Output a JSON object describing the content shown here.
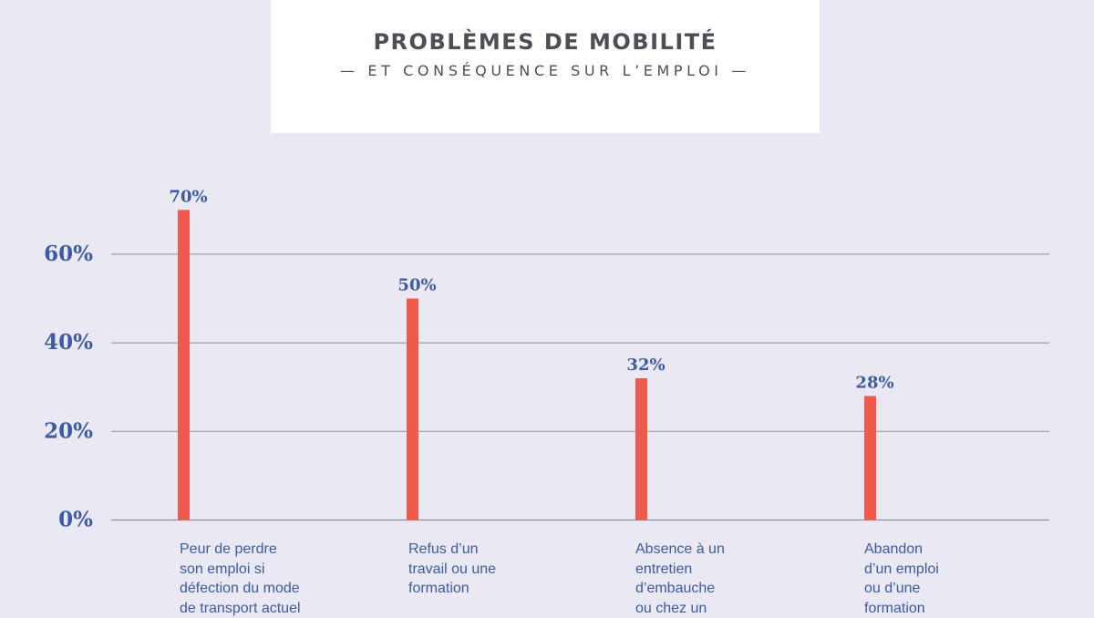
{
  "header": {
    "title": "PROBLÈMES DE MOBILITÉ",
    "subtitle": "— ET CONSÉQUENCE SUR L’EMPLOI —"
  },
  "colors": {
    "bar": "#ef5a4c",
    "text": "#3d5ba0",
    "grid": "#8f8f99",
    "background": "#e9e8f3"
  },
  "chart_data": {
    "type": "bar",
    "title": "PROBLÈMES DE MOBILITÉ",
    "subtitle": "— ET CONSÉQUENCE SUR L’EMPLOI —",
    "categories": [
      [
        "Peur de perdre",
        "son emploi si",
        "défection du mode",
        "de transport actuel"
      ],
      [
        "Refus d’un",
        "travail ou une",
        "formation"
      ],
      [
        "Absence à un",
        "entretien",
        "d’embauche",
        "ou chez un"
      ],
      [
        "Abandon",
        "d’un emploi",
        "ou d’une",
        "formation"
      ]
    ],
    "values": [
      70,
      50,
      32,
      28
    ],
    "value_labels": [
      "70%",
      "50%",
      "32%",
      "28%"
    ],
    "yticks": [
      0,
      20,
      40,
      60
    ],
    "ytick_labels": [
      "0%",
      "20%",
      "40%",
      "60%"
    ],
    "ylim": [
      0,
      80
    ],
    "grid": true,
    "legend": "none"
  }
}
